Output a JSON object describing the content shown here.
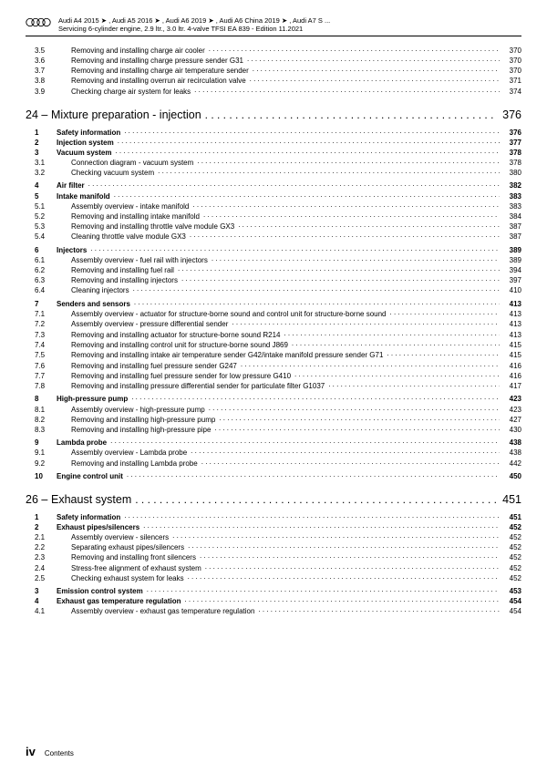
{
  "header": {
    "line1": "Audi A4 2015 ➤ , Audi A5 2016 ➤ , Audi A6 2019 ➤ , Audi A6 China 2019 ➤ , Audi A7 S ...",
    "line2": "Servicing 6-cylinder engine, 2.9 ltr., 3.0 ltr. 4-valve TFSI EA 839 - Edition 11.2021"
  },
  "colors": {
    "page_bg": "#ffffff",
    "text": "#000000",
    "rule": "#000000"
  },
  "fonts": {
    "body_pt": 8,
    "chapter_pt": 12.5,
    "footer_roman_pt": 13
  },
  "toc": [
    {
      "type": "sub",
      "num": "3.5",
      "title": "Removing and installing charge air cooler",
      "page": "370"
    },
    {
      "type": "sub",
      "num": "3.6",
      "title": "Removing and installing charge pressure sender G31",
      "page": "370"
    },
    {
      "type": "sub",
      "num": "3.7",
      "title": "Removing and installing charge air temperature sender",
      "page": "370"
    },
    {
      "type": "sub",
      "num": "3.8",
      "title": "Removing and installing overrun air recirculation valve",
      "page": "371"
    },
    {
      "type": "sub",
      "num": "3.9",
      "title": "Checking charge air system for leaks",
      "page": "374"
    },
    {
      "type": "chapter",
      "num": "24 –",
      "title": "Mixture preparation - injection",
      "page": "376"
    },
    {
      "type": "sec",
      "num": "1",
      "title": "Safety information",
      "page": "376"
    },
    {
      "type": "sec",
      "num": "2",
      "title": "Injection system",
      "page": "377"
    },
    {
      "type": "sec",
      "num": "3",
      "title": "Vacuum system",
      "page": "378"
    },
    {
      "type": "sub",
      "num": "3.1",
      "title": "Connection diagram - vacuum system",
      "page": "378"
    },
    {
      "type": "sub",
      "num": "3.2",
      "title": "Checking vacuum system",
      "page": "380"
    },
    {
      "type": "sec",
      "num": "4",
      "title": "Air filter",
      "page": "382"
    },
    {
      "type": "sec",
      "num": "5",
      "title": "Intake manifold",
      "page": "383"
    },
    {
      "type": "sub",
      "num": "5.1",
      "title": "Assembly overview - intake manifold",
      "page": "383"
    },
    {
      "type": "sub",
      "num": "5.2",
      "title": "Removing and installing intake manifold",
      "page": "384"
    },
    {
      "type": "sub",
      "num": "5.3",
      "title": "Removing and installing throttle valve module GX3",
      "page": "387"
    },
    {
      "type": "sub",
      "num": "5.4",
      "title": "Cleaning throttle valve module GX3",
      "page": "387"
    },
    {
      "type": "sec",
      "num": "6",
      "title": "Injectors",
      "page": "389"
    },
    {
      "type": "sub",
      "num": "6.1",
      "title": "Assembly overview - fuel rail with injectors",
      "page": "389"
    },
    {
      "type": "sub",
      "num": "6.2",
      "title": "Removing and installing fuel rail",
      "page": "394"
    },
    {
      "type": "sub",
      "num": "6.3",
      "title": "Removing and installing injectors",
      "page": "397"
    },
    {
      "type": "sub",
      "num": "6.4",
      "title": "Cleaning injectors",
      "page": "410"
    },
    {
      "type": "sec",
      "num": "7",
      "title": "Senders and sensors",
      "page": "413"
    },
    {
      "type": "sub",
      "num": "7.1",
      "title": "Assembly overview - actuator for structure-borne sound and control unit for structure-borne sound",
      "page": "413",
      "multiline": true
    },
    {
      "type": "sub",
      "num": "7.2",
      "title": "Assembly overview - pressure differential sender",
      "page": "413"
    },
    {
      "type": "sub",
      "num": "7.3",
      "title": "Removing and installing actuator for structure-borne sound R214",
      "page": "413"
    },
    {
      "type": "sub",
      "num": "7.4",
      "title": "Removing and installing control unit for structure-borne sound J869",
      "page": "415"
    },
    {
      "type": "sub",
      "num": "7.5",
      "title": "Removing and installing intake air temperature sender G42/intake manifold pressure sender G71",
      "page": "415",
      "multiline": true
    },
    {
      "type": "sub",
      "num": "7.6",
      "title": "Removing and installing fuel pressure sender G247",
      "page": "416"
    },
    {
      "type": "sub",
      "num": "7.7",
      "title": "Removing and installing fuel pressure sender for low pressure G410",
      "page": "416"
    },
    {
      "type": "sub",
      "num": "7.8",
      "title": "Removing and installing pressure differential sender for particulate filter G1037",
      "page": "417"
    },
    {
      "type": "sec",
      "num": "8",
      "title": "High-pressure pump",
      "page": "423"
    },
    {
      "type": "sub",
      "num": "8.1",
      "title": "Assembly overview - high-pressure pump",
      "page": "423"
    },
    {
      "type": "sub",
      "num": "8.2",
      "title": "Removing and installing high-pressure pump",
      "page": "427"
    },
    {
      "type": "sub",
      "num": "8.3",
      "title": "Removing and installing high-pressure pipe",
      "page": "430"
    },
    {
      "type": "sec",
      "num": "9",
      "title": "Lambda probe",
      "page": "438"
    },
    {
      "type": "sub",
      "num": "9.1",
      "title": "Assembly overview - Lambda probe",
      "page": "438"
    },
    {
      "type": "sub",
      "num": "9.2",
      "title": "Removing and installing Lambda probe",
      "page": "442"
    },
    {
      "type": "sec",
      "num": "10",
      "title": "Engine control unit",
      "page": "450"
    },
    {
      "type": "chapter",
      "num": "26 –",
      "title": "Exhaust system",
      "page": "451"
    },
    {
      "type": "sec",
      "num": "1",
      "title": "Safety information",
      "page": "451"
    },
    {
      "type": "sec",
      "num": "2",
      "title": "Exhaust pipes/silencers",
      "page": "452"
    },
    {
      "type": "sub",
      "num": "2.1",
      "title": "Assembly overview - silencers",
      "page": "452"
    },
    {
      "type": "sub",
      "num": "2.2",
      "title": "Separating exhaust pipes/silencers",
      "page": "452"
    },
    {
      "type": "sub",
      "num": "2.3",
      "title": "Removing and installing front silencers",
      "page": "452"
    },
    {
      "type": "sub",
      "num": "2.4",
      "title": "Stress-free alignment of exhaust system",
      "page": "452"
    },
    {
      "type": "sub",
      "num": "2.5",
      "title": "Checking exhaust system for leaks",
      "page": "452"
    },
    {
      "type": "sec",
      "num": "3",
      "title": "Emission control system",
      "page": "453"
    },
    {
      "type": "sec",
      "num": "4",
      "title": "Exhaust gas temperature regulation",
      "page": "454"
    },
    {
      "type": "sub",
      "num": "4.1",
      "title": "Assembly overview - exhaust gas temperature regulation",
      "page": "454"
    }
  ],
  "footer": {
    "roman": "iv",
    "label": "Contents"
  }
}
